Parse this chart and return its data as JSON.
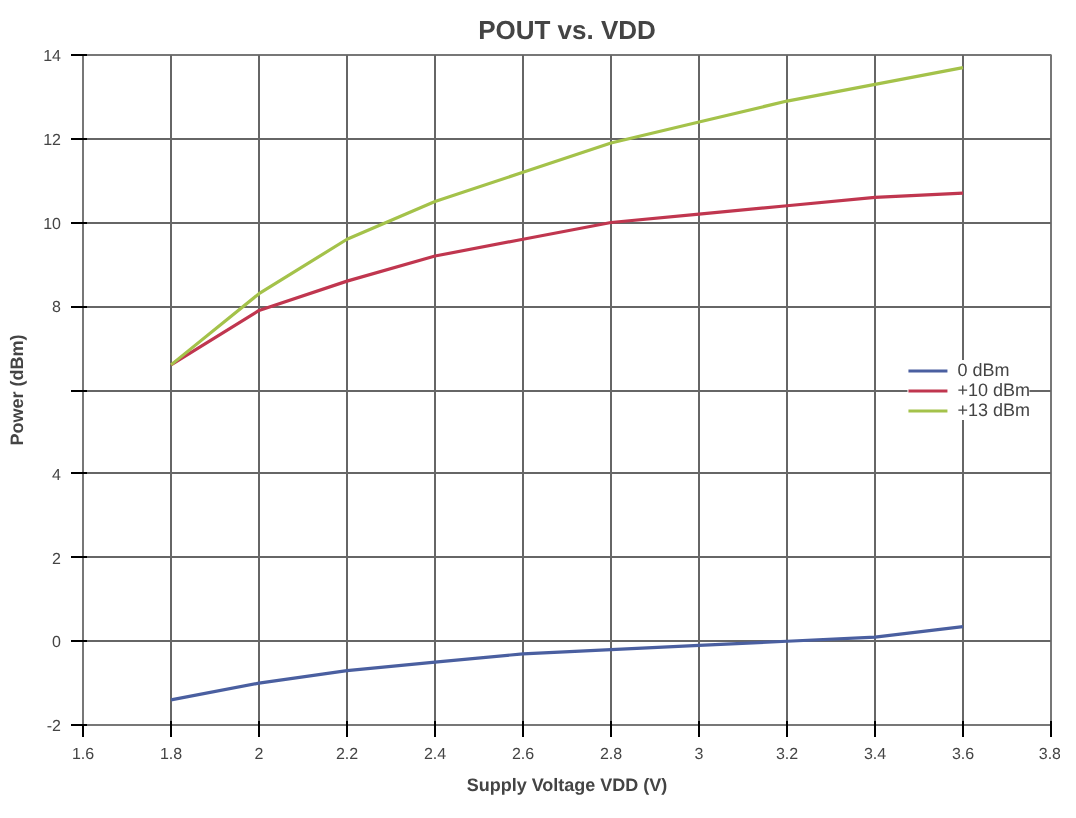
{
  "chart_data": {
    "type": "line",
    "title": "POUT vs. VDD",
    "xlabel": "Supply Voltage VDD (V)",
    "ylabel": "Power (dBm)",
    "x": [
      1.8,
      2.0,
      2.2,
      2.4,
      2.6,
      2.8,
      3.0,
      3.2,
      3.4,
      3.6
    ],
    "series": [
      {
        "name": "0 dBm",
        "color": "#4a5fa0",
        "values": [
          -1.4,
          -1.0,
          -0.7,
          -0.5,
          -0.3,
          -0.2,
          -0.1,
          0.0,
          0.1,
          0.35
        ]
      },
      {
        "name": "+10 dBm",
        "color": "#c0364f",
        "values": [
          6.6,
          7.9,
          8.6,
          9.2,
          9.6,
          10.0,
          10.2,
          10.4,
          10.6,
          10.7
        ]
      },
      {
        "name": "+13 dBm",
        "color": "#a4c24a",
        "values": [
          6.6,
          8.3,
          9.6,
          10.5,
          11.2,
          11.9,
          12.4,
          12.9,
          13.3,
          13.7
        ]
      }
    ],
    "xlim": [
      1.6,
      3.8
    ],
    "xticks": [
      1.6,
      1.8,
      2,
      2.2,
      2.4,
      2.6,
      2.8,
      3,
      3.2,
      3.4,
      3.6,
      3.8
    ],
    "ylim": [
      -2,
      14
    ],
    "yticks": [
      -2,
      0,
      2,
      4,
      {
        "value": 6,
        "label": null
      },
      8,
      10,
      12,
      14
    ],
    "grid": true,
    "legend": "right",
    "marker": "none",
    "line_style": "solid"
  }
}
